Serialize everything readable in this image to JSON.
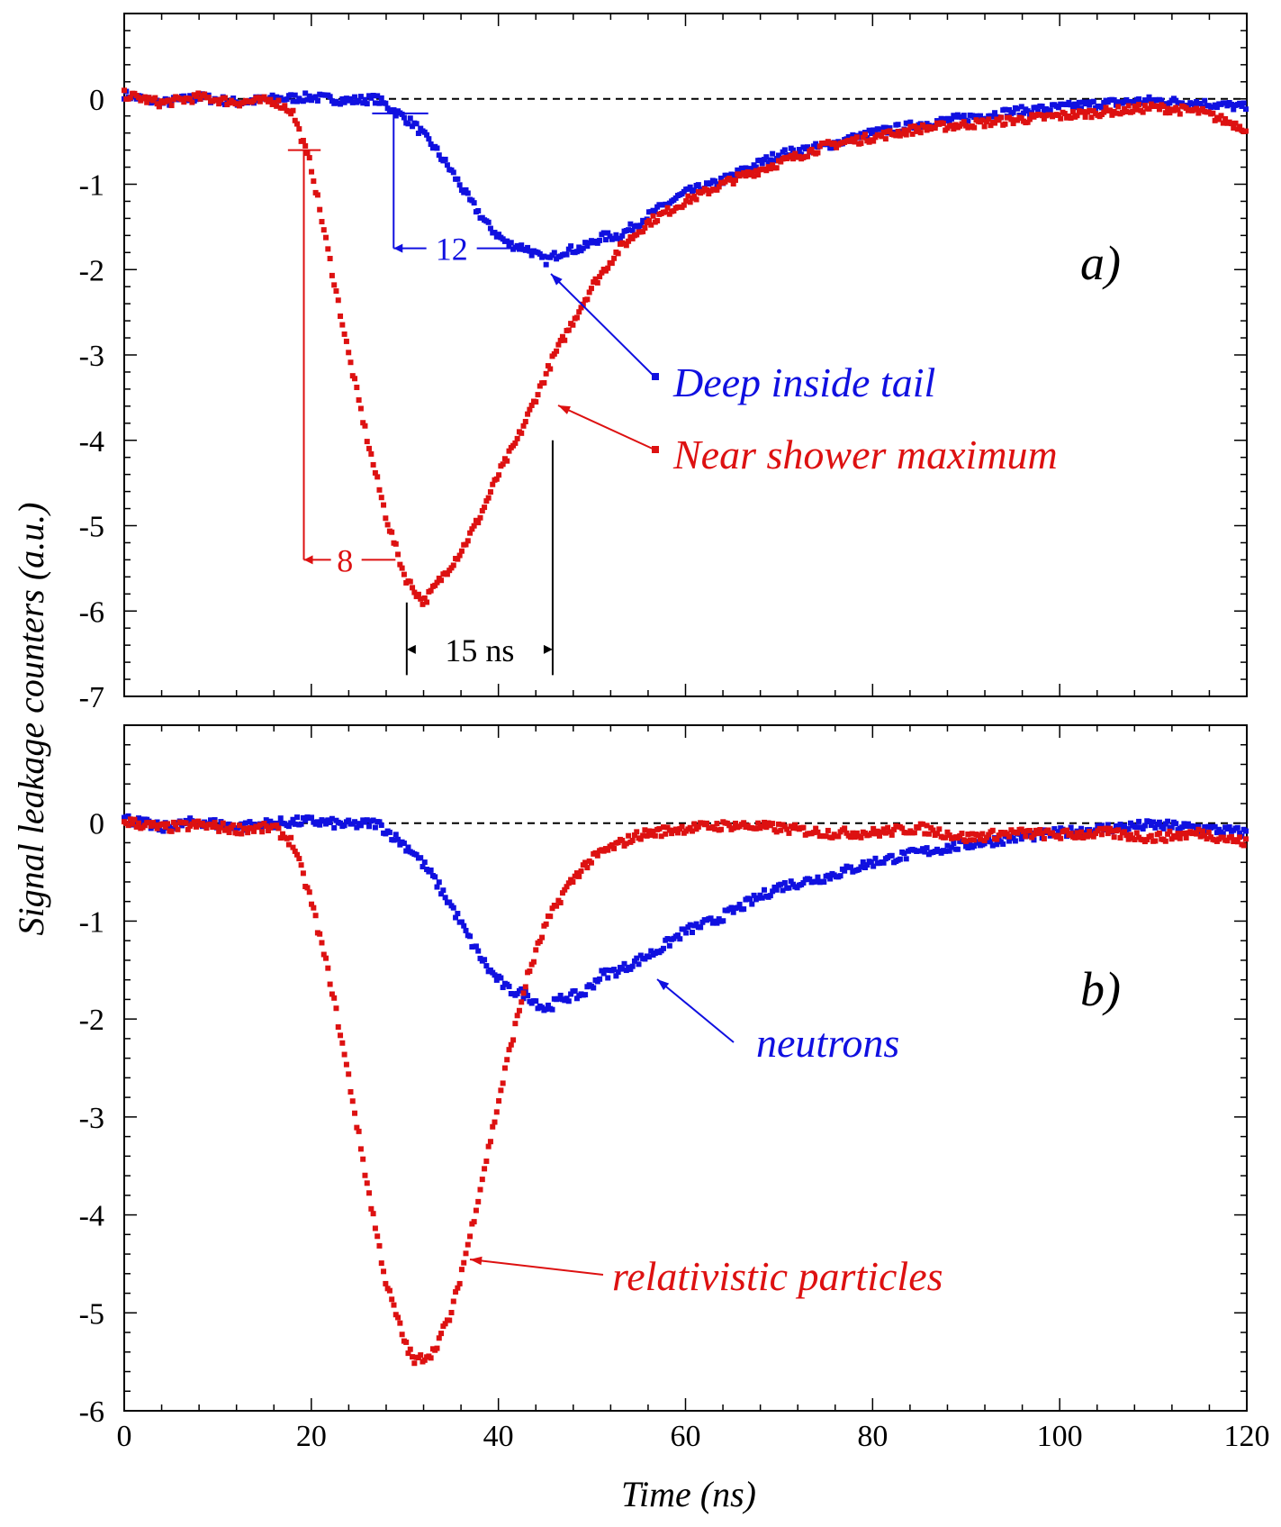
{
  "colors": {
    "blue": "#1010e0",
    "red": "#dd1111",
    "axis": "#000000"
  },
  "x_axis": {
    "label": "Time (ns)",
    "range": [
      0,
      120
    ],
    "ticks": [
      "0",
      "20",
      "40",
      "60",
      "80",
      "100",
      "120"
    ]
  },
  "y_axis_label": "Signal leakage counters (a.u.)",
  "chart_data": [
    {
      "panel": "a)",
      "type": "scatter",
      "ylim": [
        -7,
        1
      ],
      "yticks": [
        "0",
        "-1",
        "-2",
        "-3",
        "-4",
        "-5",
        "-6",
        "-7"
      ],
      "baseline": 0,
      "series": [
        {
          "name": "Deep inside tail",
          "color": "#1010e0",
          "points": [
            [
              0,
              0.05
            ],
            [
              4,
              -0.05
            ],
            [
              8,
              0.02
            ],
            [
              12,
              -0.04
            ],
            [
              16,
              0
            ],
            [
              20,
              0.02
            ],
            [
              24,
              -0.02
            ],
            [
              27,
              0
            ],
            [
              29,
              -0.15
            ],
            [
              31,
              -0.3
            ],
            [
              33,
              -0.55
            ],
            [
              35,
              -0.85
            ],
            [
              37,
              -1.2
            ],
            [
              39,
              -1.5
            ],
            [
              41,
              -1.7
            ],
            [
              43,
              -1.75
            ],
            [
              45,
              -1.9
            ],
            [
              47,
              -1.78
            ],
            [
              49,
              -1.75
            ],
            [
              51,
              -1.62
            ],
            [
              53,
              -1.6
            ],
            [
              55,
              -1.45
            ],
            [
              57,
              -1.3
            ],
            [
              60,
              -1.1
            ],
            [
              63,
              -1.0
            ],
            [
              66,
              -0.85
            ],
            [
              70,
              -0.65
            ],
            [
              75,
              -0.55
            ],
            [
              80,
              -0.4
            ],
            [
              85,
              -0.3
            ],
            [
              90,
              -0.22
            ],
            [
              95,
              -0.15
            ],
            [
              100,
              -0.1
            ],
            [
              105,
              -0.05
            ],
            [
              110,
              -0.02
            ],
            [
              115,
              -0.05
            ],
            [
              120,
              -0.1
            ]
          ]
        },
        {
          "name": "Near shower maximum",
          "color": "#dd1111",
          "points": [
            [
              0,
              0.05
            ],
            [
              4,
              -0.05
            ],
            [
              8,
              0.02
            ],
            [
              12,
              -0.04
            ],
            [
              16,
              -0.02
            ],
            [
              18,
              -0.15
            ],
            [
              20,
              -0.8
            ],
            [
              22,
              -1.9
            ],
            [
              24,
              -3.0
            ],
            [
              26,
              -4.0
            ],
            [
              28,
              -4.9
            ],
            [
              30,
              -5.6
            ],
            [
              32,
              -5.9
            ],
            [
              34,
              -5.6
            ],
            [
              36,
              -5.3
            ],
            [
              38,
              -4.9
            ],
            [
              40,
              -4.4
            ],
            [
              42,
              -4.0
            ],
            [
              44,
              -3.5
            ],
            [
              46,
              -3.0
            ],
            [
              48,
              -2.6
            ],
            [
              50,
              -2.2
            ],
            [
              53,
              -1.75
            ],
            [
              56,
              -1.45
            ],
            [
              60,
              -1.2
            ],
            [
              65,
              -0.95
            ],
            [
              70,
              -0.75
            ],
            [
              75,
              -0.55
            ],
            [
              80,
              -0.45
            ],
            [
              85,
              -0.35
            ],
            [
              90,
              -0.3
            ],
            [
              95,
              -0.25
            ],
            [
              100,
              -0.2
            ],
            [
              105,
              -0.15
            ],
            [
              110,
              -0.1
            ],
            [
              115,
              -0.15
            ],
            [
              120,
              -0.35
            ]
          ]
        }
      ],
      "annotations": {
        "blue_width": "12",
        "red_width": "8",
        "delay": "15 ns"
      }
    },
    {
      "panel": "b)",
      "type": "scatter",
      "ylim": [
        -6,
        1
      ],
      "yticks": [
        "0",
        "-1",
        "-2",
        "-3",
        "-4",
        "-5",
        "-6"
      ],
      "baseline": 0,
      "series": [
        {
          "name": "neutrons",
          "color": "#1010e0",
          "points": [
            [
              0,
              0.05
            ],
            [
              4,
              -0.05
            ],
            [
              8,
              0.02
            ],
            [
              12,
              -0.04
            ],
            [
              16,
              0
            ],
            [
              20,
              0.02
            ],
            [
              24,
              -0.02
            ],
            [
              27,
              0
            ],
            [
              29,
              -0.15
            ],
            [
              31,
              -0.3
            ],
            [
              33,
              -0.55
            ],
            [
              35,
              -0.85
            ],
            [
              37,
              -1.2
            ],
            [
              39,
              -1.5
            ],
            [
              41,
              -1.7
            ],
            [
              43,
              -1.75
            ],
            [
              45,
              -1.9
            ],
            [
              47,
              -1.78
            ],
            [
              49,
              -1.75
            ],
            [
              51,
              -1.55
            ],
            [
              53,
              -1.5
            ],
            [
              55,
              -1.4
            ],
            [
              57,
              -1.3
            ],
            [
              60,
              -1.1
            ],
            [
              63,
              -1.0
            ],
            [
              66,
              -0.85
            ],
            [
              70,
              -0.65
            ],
            [
              75,
              -0.55
            ],
            [
              80,
              -0.4
            ],
            [
              85,
              -0.3
            ],
            [
              90,
              -0.22
            ],
            [
              95,
              -0.15
            ],
            [
              100,
              -0.1
            ],
            [
              105,
              -0.05
            ],
            [
              110,
              -0.02
            ],
            [
              115,
              -0.05
            ],
            [
              120,
              -0.1
            ]
          ]
        },
        {
          "name": "relativistic particles",
          "color": "#dd1111",
          "points": [
            [
              0,
              0.02
            ],
            [
              4,
              -0.05
            ],
            [
              8,
              -0.02
            ],
            [
              12,
              -0.06
            ],
            [
              16,
              -0.05
            ],
            [
              18,
              -0.2
            ],
            [
              20,
              -0.8
            ],
            [
              22,
              -1.6
            ],
            [
              24,
              -2.6
            ],
            [
              26,
              -3.7
            ],
            [
              28,
              -4.7
            ],
            [
              30,
              -5.3
            ],
            [
              31,
              -5.5
            ],
            [
              33,
              -5.4
            ],
            [
              35,
              -5.0
            ],
            [
              37,
              -4.2
            ],
            [
              39,
              -3.3
            ],
            [
              41,
              -2.4
            ],
            [
              43,
              -1.6
            ],
            [
              45,
              -1.05
            ],
            [
              47,
              -0.7
            ],
            [
              49,
              -0.45
            ],
            [
              51,
              -0.3
            ],
            [
              55,
              -0.12
            ],
            [
              60,
              -0.05
            ],
            [
              65,
              -0.02
            ],
            [
              70,
              -0.05
            ],
            [
              75,
              -0.1
            ],
            [
              80,
              -0.1
            ],
            [
              85,
              -0.05
            ],
            [
              90,
              -0.15
            ],
            [
              95,
              -0.1
            ],
            [
              100,
              -0.12
            ],
            [
              105,
              -0.1
            ],
            [
              110,
              -0.15
            ],
            [
              115,
              -0.1
            ],
            [
              120,
              -0.2
            ]
          ]
        }
      ]
    }
  ]
}
